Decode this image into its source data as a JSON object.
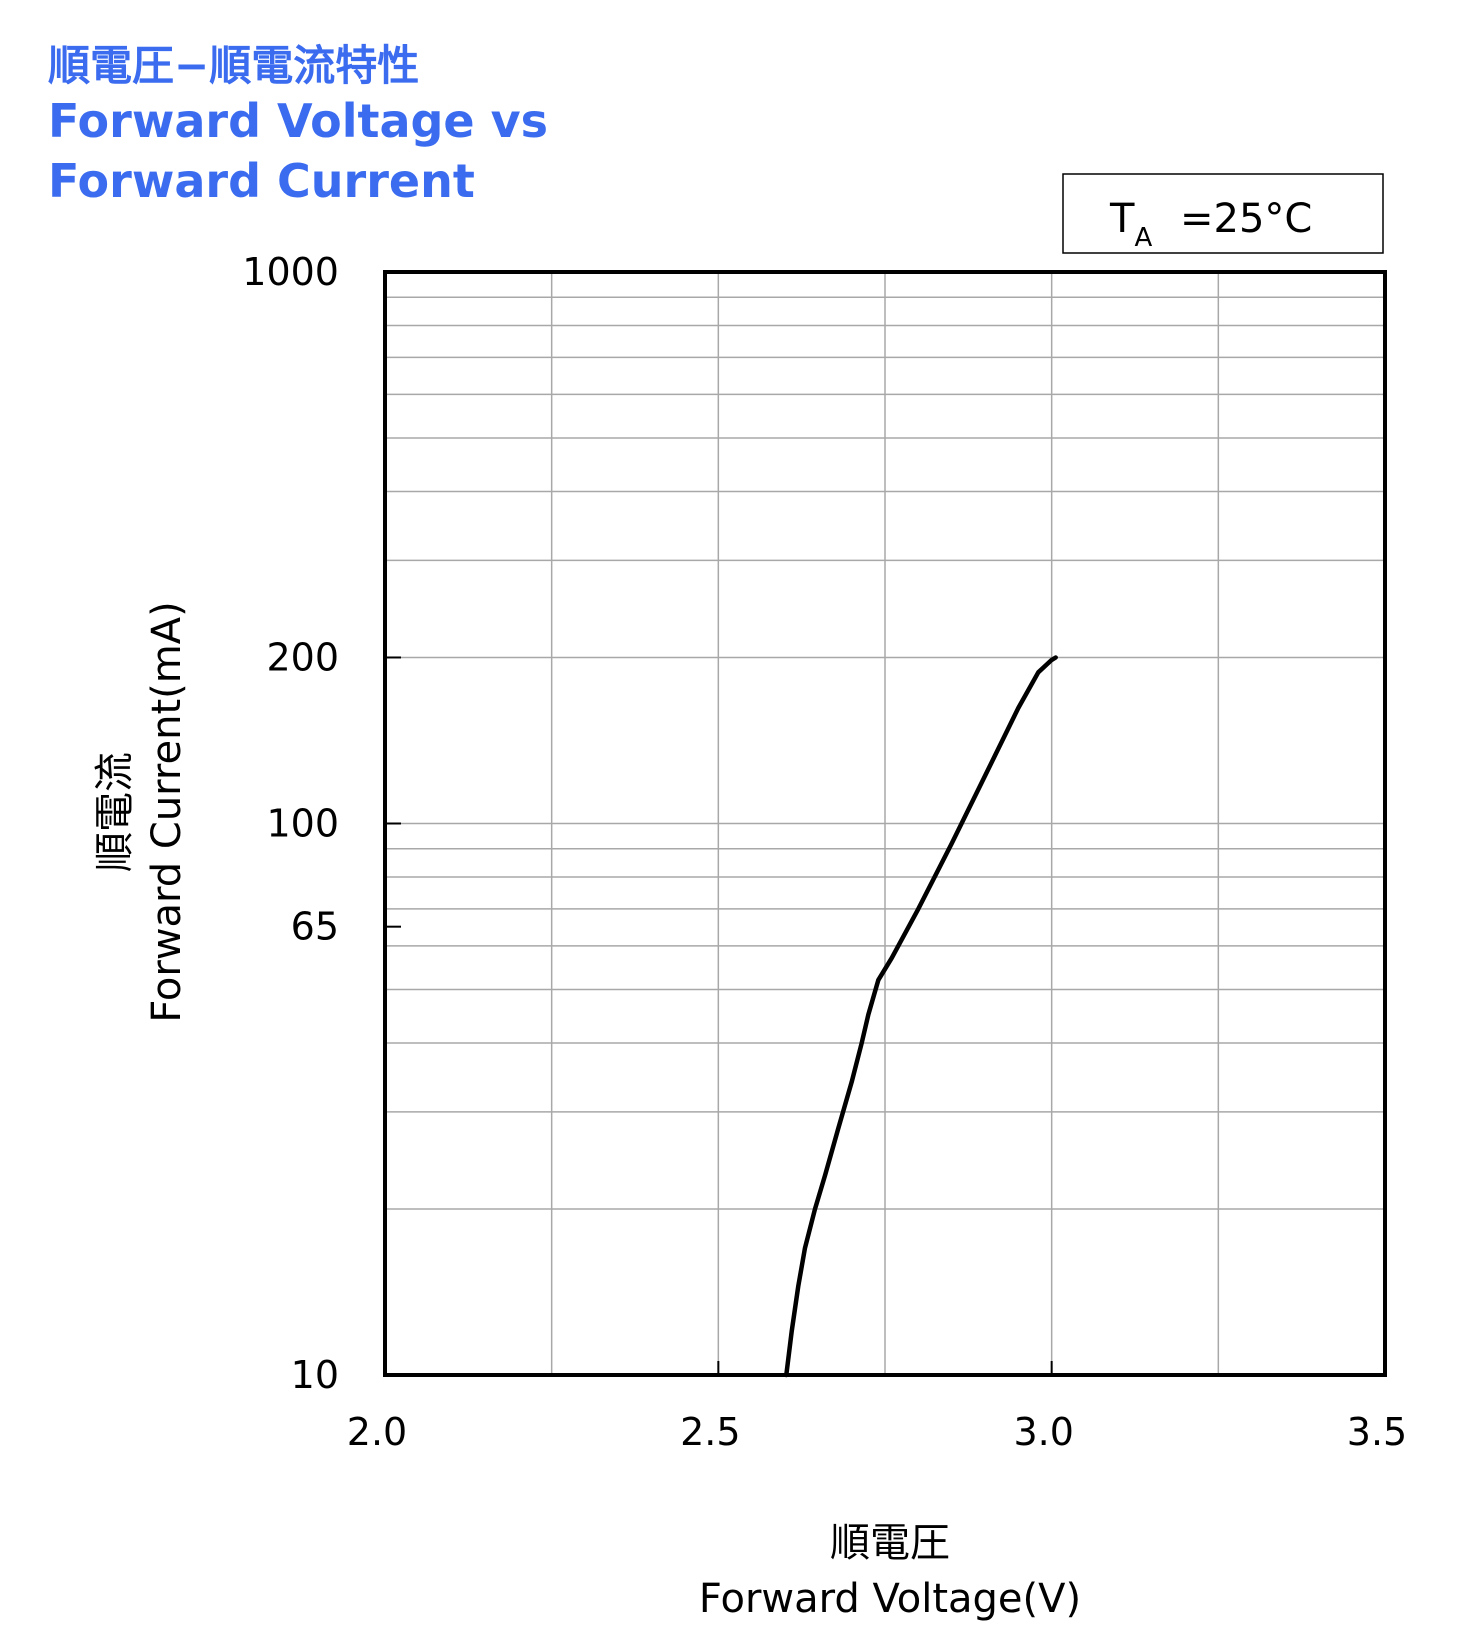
{
  "title": {
    "jp": "順電圧−順電流特性",
    "en_line1": "Forward Voltage vs",
    "en_line2": "Forward Current"
  },
  "condition": {
    "label_main": "T",
    "label_sub": "A",
    "value": "=25°C"
  },
  "chart_data": {
    "type": "line",
    "xlabel_jp": "順電圧",
    "xlabel": "Forward Voltage(V)",
    "ylabel_jp": "順電流",
    "ylabel": "Forward Current(mA)",
    "xlim": [
      2.0,
      3.5
    ],
    "ylim": [
      10,
      1000
    ],
    "yscale": "log",
    "grid": true,
    "x_ticks": [
      {
        "value": 2.0,
        "label": "2.0"
      },
      {
        "value": 2.5,
        "label": "2.5"
      },
      {
        "value": 3.0,
        "label": "3.0"
      },
      {
        "value": 3.5,
        "label": "3.5"
      }
    ],
    "y_ticks": [
      {
        "value": 10,
        "label": "10"
      },
      {
        "value": 65,
        "label": "65"
      },
      {
        "value": 100,
        "label": "100"
      },
      {
        "value": 200,
        "label": "200"
      },
      {
        "value": 1000,
        "label": "1000"
      }
    ],
    "series": [
      {
        "color": "#000000",
        "x": [
          2.602,
          2.61,
          2.62,
          2.63,
          2.645,
          2.66,
          2.68,
          2.7,
          2.715,
          2.725,
          2.74,
          2.76,
          2.8,
          2.85,
          2.9,
          2.95,
          2.98,
          3.0,
          3.006
        ],
        "y": [
          10,
          12,
          14.5,
          17,
          20,
          23,
          28,
          34,
          40,
          45,
          52,
          57,
          70,
          92,
          122,
          162,
          188,
          198,
          200
        ]
      }
    ]
  }
}
